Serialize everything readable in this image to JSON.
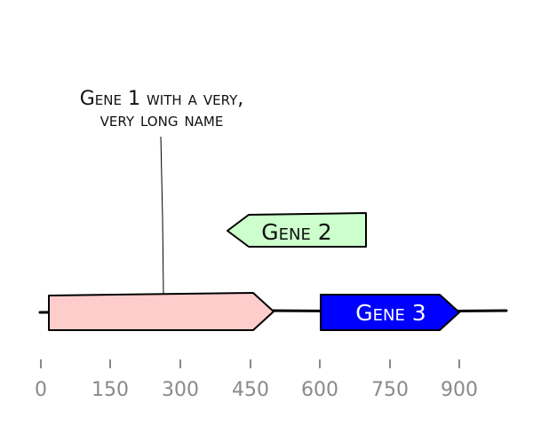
{
  "diagram": {
    "backbone": {
      "start": 0,
      "end": 1000
    },
    "features": [
      {
        "id": "gene1",
        "label_lines": [
          "Gene 1 with a very,",
          "very long name"
        ],
        "start": 20,
        "end": 500,
        "strand": 1,
        "color": "#ffcccc",
        "text_color": "#111111",
        "label_position": "above"
      },
      {
        "id": "gene2",
        "label": "Gene 2",
        "start": 400,
        "end": 700,
        "strand": -1,
        "color": "#ccffcc",
        "text_color": "#111111",
        "label_position": "inline"
      },
      {
        "id": "gene3",
        "label": "Gene 3",
        "start": 600,
        "end": 900,
        "strand": 1,
        "color": "#0000ff",
        "text_color": "#ffffff",
        "label_position": "inline"
      }
    ],
    "axis": {
      "ticks": [
        "0",
        "150",
        "300",
        "450",
        "600",
        "750",
        "900"
      ],
      "tick_color": "#8a8a8a"
    }
  }
}
